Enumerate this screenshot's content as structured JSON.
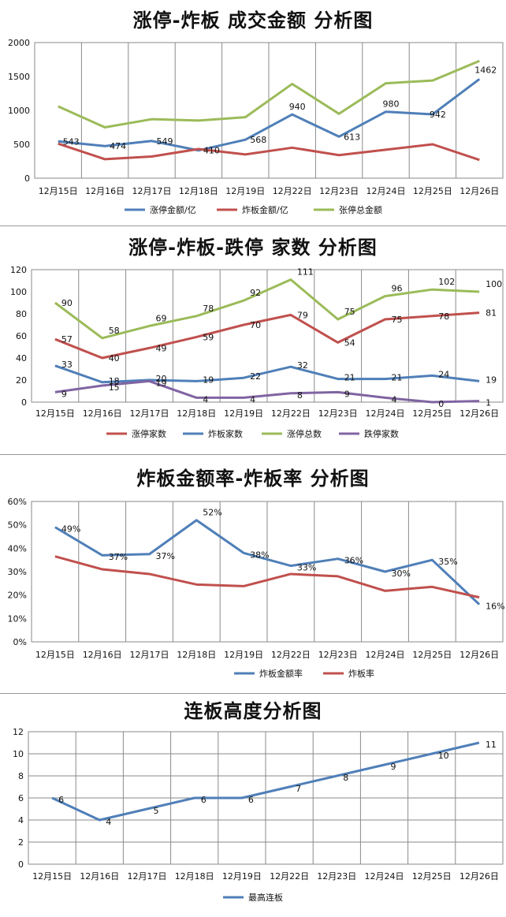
{
  "chart_data": [
    {
      "type": "line",
      "title": "涨停-炸板 成交金额 分析图",
      "categories": [
        "12月15日",
        "12月16日",
        "12月17日",
        "12月18日",
        "12月19日",
        "12月22日",
        "12月23日",
        "12月24日",
        "12月25日",
        "12月26日"
      ],
      "ylim": [
        0,
        2000
      ],
      "yticks": [
        "0",
        "500",
        "1000",
        "1500",
        "2000"
      ],
      "grid": "vertical",
      "legend": "bottom",
      "series": [
        {
          "name": "涨停金额/亿",
          "color": "#4f7fb8",
          "values": [
            543,
            474,
            549,
            410,
            568,
            940,
            613,
            980,
            942,
            1462
          ],
          "labels": [
            "543",
            "474",
            "549",
            "410",
            "568",
            "940",
            "613",
            "980",
            "942",
            "1462"
          ]
        },
        {
          "name": "炸板金额/亿",
          "color": "#c0504d",
          "values": [
            510,
            280,
            320,
            430,
            350,
            450,
            340,
            420,
            500,
            270
          ],
          "labels": []
        },
        {
          "name": "张停总金额",
          "color": "#9bbb59",
          "values": [
            1060,
            750,
            870,
            850,
            900,
            1390,
            950,
            1400,
            1440,
            1730
          ],
          "labels": []
        }
      ]
    },
    {
      "type": "line",
      "title": "涨停-炸板-跌停 家数 分析图",
      "categories": [
        "12月15日",
        "12月16日",
        "12月17日",
        "12月18日",
        "12月19日",
        "12月22日",
        "12月23日",
        "12月24日",
        "12月25日",
        "12月26日"
      ],
      "ylim": [
        0,
        120
      ],
      "yticks": [
        "0",
        "20",
        "40",
        "60",
        "80",
        "100",
        "120"
      ],
      "grid": "vertical",
      "legend": "bottom",
      "series": [
        {
          "name": "涨停家数",
          "color": "#c0504d",
          "values": [
            57,
            40,
            49,
            59,
            70,
            79,
            54,
            75,
            78,
            81
          ],
          "labels": [
            "57",
            "40",
            "49",
            "59",
            "70",
            "79",
            "54",
            "75",
            "78",
            "81"
          ]
        },
        {
          "name": "炸板家数",
          "color": "#4f7fb8",
          "values": [
            33,
            18,
            20,
            19,
            22,
            32,
            21,
            21,
            24,
            19
          ],
          "labels": [
            "33",
            "18",
            "20",
            "19",
            "22",
            "32",
            "21",
            "21",
            "24",
            "19"
          ]
        },
        {
          "name": "涨停总数",
          "color": "#9bbb59",
          "values": [
            90,
            58,
            69,
            78,
            92,
            111,
            75,
            96,
            102,
            100
          ],
          "labels": [
            "90",
            "58",
            "69",
            "78",
            "92",
            "111",
            "75",
            "96",
            "102",
            "100"
          ]
        },
        {
          "name": "跌停家数",
          "color": "#8064a2",
          "values": [
            9,
            15,
            19,
            4,
            4,
            8,
            9,
            4,
            0,
            1
          ],
          "labels": [
            "9",
            "15",
            "19",
            "4",
            "4",
            "8",
            "9",
            "4",
            "0",
            "1"
          ]
        }
      ]
    },
    {
      "type": "line",
      "title": "炸板金额率-炸板率 分析图",
      "categories": [
        "12月15日",
        "12月16日",
        "12月17日",
        "12月18日",
        "12月19日",
        "12月22日",
        "12月23日",
        "12月24日",
        "12月25日",
        "12月26日"
      ],
      "ylim": [
        0,
        0.6
      ],
      "yticks": [
        "0%",
        "10%",
        "20%",
        "30%",
        "40%",
        "50%",
        "60%"
      ],
      "grid": "vertical",
      "legend": "bottom",
      "series": [
        {
          "name": "炸板金额率",
          "color": "#4f7fb8",
          "values": [
            0.49,
            0.37,
            0.375,
            0.52,
            0.38,
            0.325,
            0.355,
            0.3,
            0.35,
            0.16
          ],
          "labels": [
            "49%",
            "37%",
            "37%",
            "52%",
            "38%",
            "33%",
            "36%",
            "30%",
            "35%",
            "16%"
          ]
        },
        {
          "name": "炸板率",
          "color": "#c0504d",
          "values": [
            0.365,
            0.31,
            0.29,
            0.245,
            0.238,
            0.29,
            0.28,
            0.218,
            0.235,
            0.19
          ],
          "labels": []
        }
      ]
    },
    {
      "type": "line",
      "title": "连板高度分析图",
      "categories": [
        "12月15日",
        "12月16日",
        "12月17日",
        "12月18日",
        "12月19日",
        "12月22日",
        "12月23日",
        "12月24日",
        "12月25日",
        "12月26日"
      ],
      "ylim": [
        0,
        12
      ],
      "yticks": [
        "0",
        "2",
        "4",
        "6",
        "8",
        "10",
        "12"
      ],
      "grid": "both",
      "legend": "bottom",
      "series": [
        {
          "name": "最高连板",
          "color": "#4f7fb8",
          "values": [
            6,
            4,
            5,
            6,
            6,
            7,
            8,
            9,
            10,
            11
          ],
          "labels": [
            "6",
            "4",
            "5",
            "6",
            "6",
            "7",
            "8",
            "9",
            "10",
            "11"
          ]
        }
      ]
    }
  ]
}
